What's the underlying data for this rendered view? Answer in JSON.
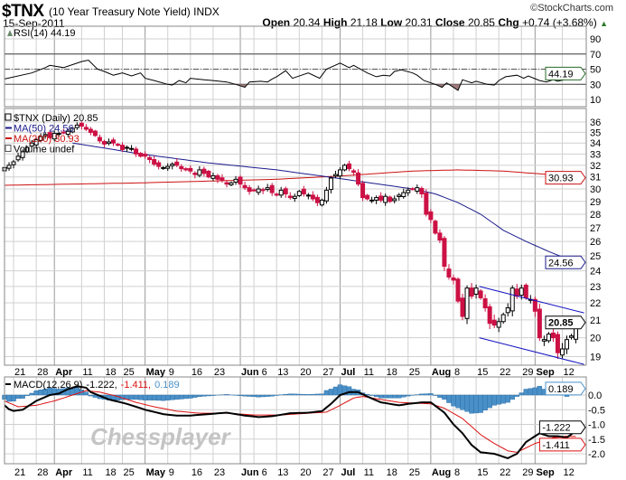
{
  "header": {
    "symbol": "$TNX",
    "description": "(10 Year Treasury Note Yield)",
    "exchange": "INDX",
    "date": "15-Sep-2011",
    "credit": "©StockCharts.com",
    "open_label": "Open",
    "open": "20.34",
    "high_label": "High",
    "high": "21.18",
    "low_label": "Low",
    "low": "20.31",
    "close_label": "Close",
    "close": "20.85",
    "chg_label": "Chg",
    "chg": "+0.74 (+3.68%)",
    "chg_arrow": "▲"
  },
  "watermark": "Chessplayer",
  "colors": {
    "up": "#000000",
    "down": "#cc1144",
    "ma50": "#1a1a8c",
    "ma200": "#cc1111",
    "macd": "#000000",
    "signal": "#dd1111",
    "hist": "#4a90c8",
    "grid": "#d0d0d0",
    "rsi_fill": "#a07a7a",
    "channel": "#1010c0"
  },
  "chart_data": [
    {
      "type": "line",
      "name": "rsi",
      "title": "RSI(14) 44.19",
      "yticks": [
        90,
        70,
        50,
        30,
        10
      ],
      "ylim": [
        0,
        100
      ],
      "reference_lines": [
        70,
        50,
        30
      ],
      "last_value_tag": "44.19",
      "points": [
        [
          0,
          37
        ],
        [
          6,
          45
        ],
        [
          9,
          52
        ],
        [
          10,
          55
        ],
        [
          13,
          52
        ],
        [
          17,
          60
        ],
        [
          18.5,
          62
        ],
        [
          20.5,
          50
        ],
        [
          22,
          47
        ],
        [
          24,
          42
        ],
        [
          26,
          45
        ],
        [
          28,
          41
        ],
        [
          30,
          45
        ],
        [
          31,
          38
        ],
        [
          33,
          35
        ],
        [
          36,
          30
        ],
        [
          37,
          29
        ],
        [
          38.5,
          35
        ],
        [
          40,
          32
        ],
        [
          41,
          38
        ],
        [
          44,
          36
        ],
        [
          46,
          35
        ],
        [
          49,
          33
        ],
        [
          51,
          30
        ],
        [
          53,
          26
        ],
        [
          54,
          33
        ],
        [
          56.5,
          34
        ],
        [
          58,
          33
        ],
        [
          59,
          37
        ],
        [
          60,
          40
        ],
        [
          62,
          48
        ],
        [
          63.5,
          38
        ],
        [
          65.5,
          42
        ],
        [
          67,
          45
        ],
        [
          69.5,
          38
        ],
        [
          71,
          50
        ],
        [
          74,
          58
        ],
        [
          76,
          52
        ],
        [
          77,
          55
        ],
        [
          80,
          45
        ],
        [
          82,
          40
        ],
        [
          83.5,
          42
        ],
        [
          85,
          41
        ],
        [
          86,
          47
        ],
        [
          87.5,
          49
        ],
        [
          90,
          45
        ],
        [
          91,
          42
        ],
        [
          92.5,
          35
        ],
        [
          95,
          30
        ],
        [
          96.5,
          26
        ],
        [
          97.5,
          32
        ],
        [
          100,
          22
        ],
        [
          101,
          36
        ],
        [
          103,
          32
        ],
        [
          104,
          34
        ],
        [
          106.5,
          30
        ],
        [
          108,
          29
        ],
        [
          109,
          35
        ],
        [
          110.5,
          40
        ],
        [
          113,
          42
        ],
        [
          114.5,
          38
        ],
        [
          115.5,
          41
        ],
        [
          118,
          35
        ],
        [
          119.5,
          33
        ],
        [
          121,
          36
        ],
        [
          122,
          34
        ],
        [
          123.5,
          36
        ],
        [
          124.5,
          40
        ],
        [
          126,
          44.19
        ]
      ]
    },
    {
      "type": "candlestick",
      "name": "price",
      "legend": [
        "$TNX (Daily) 20.85",
        "MA(50) 24.56",
        "MA(200) 30.93",
        "Volume undef"
      ],
      "scale": "log",
      "ylim": [
        18.5,
        36.5
      ],
      "yticks": [
        36,
        35,
        34,
        33,
        32,
        31,
        30,
        29,
        28,
        27,
        26,
        25,
        24,
        23,
        22,
        21,
        20,
        19
      ],
      "tags": {
        "ma200": "30.93",
        "ma50": "24.56",
        "close": "20.85"
      },
      "close": [
        31.8,
        32.0,
        32.3,
        32.8,
        33.2,
        33.6,
        34.0,
        34.3,
        34.6,
        34.8,
        34.5,
        34.9,
        34.9,
        35.0,
        35.1,
        35.4,
        35.7,
        35.6,
        35.3,
        35.0,
        34.7,
        34.2,
        33.9,
        34.1,
        34.0,
        33.8,
        33.4,
        33.6,
        33.5,
        33.0,
        32.8,
        32.8,
        32.5,
        32.1,
        31.9,
        31.8,
        31.9,
        32.1,
        32.0,
        31.7,
        31.6,
        31.5,
        31.2,
        31.6,
        31.3,
        31.0,
        31.1,
        30.8,
        30.7,
        30.4,
        30.5,
        30.8,
        30.4,
        30.1,
        29.8,
        29.9,
        30.0,
        29.9,
        30.1,
        29.7,
        29.5,
        29.9,
        29.6,
        29.3,
        29.4,
        29.8,
        29.6,
        29.5,
        29.2,
        28.9,
        29.1,
        29.9,
        30.9,
        31.2,
        31.6,
        32.0,
        31.7,
        31.4,
        30.4,
        29.3,
        29.2,
        29.1,
        29.3,
        29.1,
        29.4,
        29.0,
        29.2,
        29.5,
        29.7,
        29.9,
        30.0,
        30.1,
        29.6,
        28.0,
        27.6,
        26.6,
        26.1,
        24.3,
        23.6,
        23.4,
        22.1,
        21.2,
        22.9,
        22.4,
        22.9,
        22.3,
        21.7,
        20.8,
        20.7,
        20.9,
        21.3,
        21.7,
        22.9,
        22.4,
        22.9,
        22.3,
        22.2,
        21.5,
        20.0,
        19.9,
        20.2,
        20.0,
        19.2,
        19.4,
        19.9,
        20.1,
        20.85
      ],
      "ma50": [
        [
          15,
          34.0
        ],
        [
          30,
          33.0
        ],
        [
          45,
          32.2
        ],
        [
          60,
          31.6
        ],
        [
          75,
          30.8
        ],
        [
          90,
          30.0
        ],
        [
          95,
          29.6
        ],
        [
          100,
          28.9
        ],
        [
          105,
          28.0
        ],
        [
          110,
          26.8
        ],
        [
          115,
          26.0
        ],
        [
          120,
          25.3
        ],
        [
          126,
          24.56
        ]
      ],
      "ma200": [
        [
          0,
          30.3
        ],
        [
          30,
          30.5
        ],
        [
          60,
          30.8
        ],
        [
          75,
          31.1
        ],
        [
          90,
          31.5
        ],
        [
          100,
          31.6
        ],
        [
          110,
          31.5
        ],
        [
          120,
          31.2
        ],
        [
          126,
          30.93
        ]
      ],
      "channel_lines": [
        [
          [
            104.7,
            23.0
          ],
          [
            127.8,
            21.4
          ]
        ],
        [
          [
            104.7,
            20.0
          ],
          [
            127.8,
            18.6
          ]
        ]
      ]
    },
    {
      "type": "line",
      "name": "macd",
      "title": "MACD(12,26,9)",
      "values_text": [
        "-1.222",
        "-1.411",
        "0.189"
      ],
      "yticks": [
        "0.0",
        "-0.5",
        "-1.0",
        "-1.5",
        "-2.0"
      ],
      "ytick_values": [
        0,
        -0.5,
        -1.0,
        -1.5,
        -2.0
      ],
      "ylim": [
        -2.4,
        0.6
      ],
      "macd": [
        [
          0,
          -0.35
        ],
        [
          1.5,
          -0.55
        ],
        [
          4,
          -0.5
        ],
        [
          7,
          -0.2
        ],
        [
          10,
          0
        ],
        [
          12,
          0.05
        ],
        [
          14,
          0.2
        ],
        [
          16,
          0.3
        ],
        [
          18,
          0.25
        ],
        [
          19,
          0.1
        ],
        [
          23,
          -0.15
        ],
        [
          27,
          -0.3
        ],
        [
          31,
          -0.5
        ],
        [
          35,
          -0.65
        ],
        [
          38,
          -0.7
        ],
        [
          41,
          -0.7
        ],
        [
          45,
          -0.65
        ],
        [
          49,
          -0.6
        ],
        [
          53,
          -0.7
        ],
        [
          56,
          -0.75
        ],
        [
          59,
          -0.72
        ],
        [
          63,
          -0.62
        ],
        [
          67,
          -0.6
        ],
        [
          70,
          -0.55
        ],
        [
          72,
          -0.3
        ],
        [
          74,
          0
        ],
        [
          76,
          0.1
        ],
        [
          78,
          0.1
        ],
        [
          80,
          -0.05
        ],
        [
          83,
          -0.25
        ],
        [
          87,
          -0.35
        ],
        [
          89,
          -0.3
        ],
        [
          92,
          -0.25
        ],
        [
          94,
          -0.25
        ],
        [
          97,
          -0.6
        ],
        [
          99,
          -1.0
        ],
        [
          101,
          -1.3
        ],
        [
          103,
          -1.7
        ],
        [
          105,
          -1.95
        ],
        [
          108,
          -2.0
        ],
        [
          111,
          -2.15
        ],
        [
          113,
          -2.0
        ],
        [
          115,
          -1.6
        ],
        [
          118,
          -1.3
        ],
        [
          120,
          -1.4
        ],
        [
          122,
          -1.4
        ],
        [
          124,
          -1.45
        ],
        [
          126,
          -1.222
        ]
      ],
      "signal": [
        [
          0,
          -0.2
        ],
        [
          3,
          -0.4
        ],
        [
          7,
          -0.35
        ],
        [
          11,
          -0.2
        ],
        [
          15,
          0
        ],
        [
          18,
          0.15
        ],
        [
          21,
          0.1
        ],
        [
          25,
          -0.05
        ],
        [
          29,
          -0.25
        ],
        [
          33,
          -0.4
        ],
        [
          38,
          -0.55
        ],
        [
          43,
          -0.62
        ],
        [
          49,
          -0.62
        ],
        [
          55,
          -0.68
        ],
        [
          61,
          -0.68
        ],
        [
          67,
          -0.62
        ],
        [
          71,
          -0.58
        ],
        [
          74,
          -0.35
        ],
        [
          77,
          -0.1
        ],
        [
          79,
          -0.05
        ],
        [
          83,
          -0.15
        ],
        [
          87,
          -0.25
        ],
        [
          91,
          -0.28
        ],
        [
          94,
          -0.3
        ],
        [
          97,
          -0.45
        ],
        [
          101,
          -0.8
        ],
        [
          105,
          -1.35
        ],
        [
          108,
          -1.65
        ],
        [
          111,
          -1.9
        ],
        [
          113,
          -1.95
        ],
        [
          117,
          -1.65
        ],
        [
          121,
          -1.45
        ],
        [
          124,
          -1.4
        ],
        [
          126,
          -1.411
        ]
      ]
    }
  ],
  "x_axis": {
    "labels": [
      "21",
      "28",
      "Apr",
      "11",
      "18",
      "25",
      "May",
      "9",
      "16",
      "23",
      "Jun",
      "6",
      "13",
      "20",
      "27",
      "Jul",
      "11",
      "18",
      "25",
      "Aug",
      "8",
      "15",
      "22",
      "29",
      "Sep",
      "12"
    ],
    "days": [
      2,
      7,
      11,
      17,
      22,
      26,
      31,
      36,
      41,
      46,
      52,
      55,
      60,
      65,
      70,
      74,
      79,
      84,
      89,
      94,
      99,
      104,
      109,
      114,
      117,
      123
    ],
    "month_labels": [
      "Apr",
      "May",
      "Jun",
      "Jul",
      "Aug",
      "Sep"
    ]
  }
}
